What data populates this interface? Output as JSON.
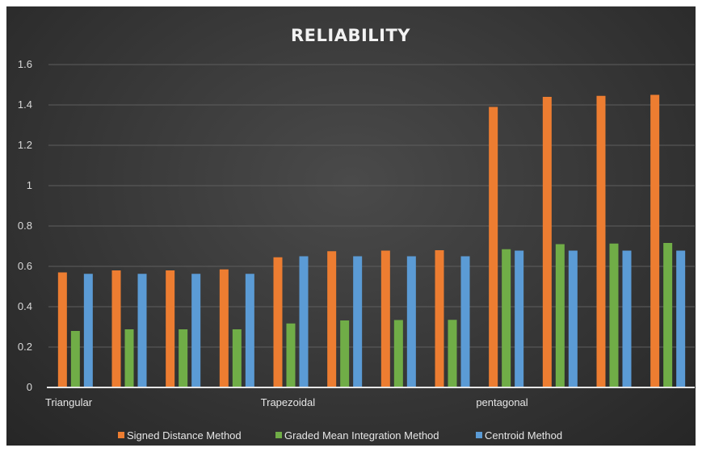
{
  "chart_data": {
    "type": "bar",
    "title": "RELIABILITY",
    "xlabel": "",
    "ylabel": "",
    "ylim": [
      0,
      1.6
    ],
    "yticks": [
      "0",
      "0.2",
      "0.4",
      "0.6",
      "0.8",
      "1",
      "1.2",
      "1.4",
      "1.6"
    ],
    "grid": true,
    "legend_position": "bottom",
    "categories": [
      "Triangular",
      "",
      "",
      "",
      "Trapezoidal",
      "",
      "",
      "",
      "pentagonal",
      "",
      "",
      ""
    ],
    "series": [
      {
        "name": "Signed Distance Method",
        "color": "#ed7d31",
        "values": [
          0.57,
          0.58,
          0.58,
          0.585,
          0.645,
          0.675,
          0.678,
          0.68,
          1.39,
          1.44,
          1.445,
          1.45
        ]
      },
      {
        "name": "Graded Mean Integration Method",
        "color": "#70ad47",
        "values": [
          0.28,
          0.288,
          0.288,
          0.288,
          0.317,
          0.332,
          0.334,
          0.335,
          0.685,
          0.71,
          0.713,
          0.716
        ]
      },
      {
        "name": "Centroid Method",
        "color": "#5b9bd5",
        "values": [
          0.563,
          0.563,
          0.563,
          0.563,
          0.65,
          0.65,
          0.65,
          0.65,
          0.678,
          0.678,
          0.678,
          0.678
        ]
      }
    ]
  }
}
